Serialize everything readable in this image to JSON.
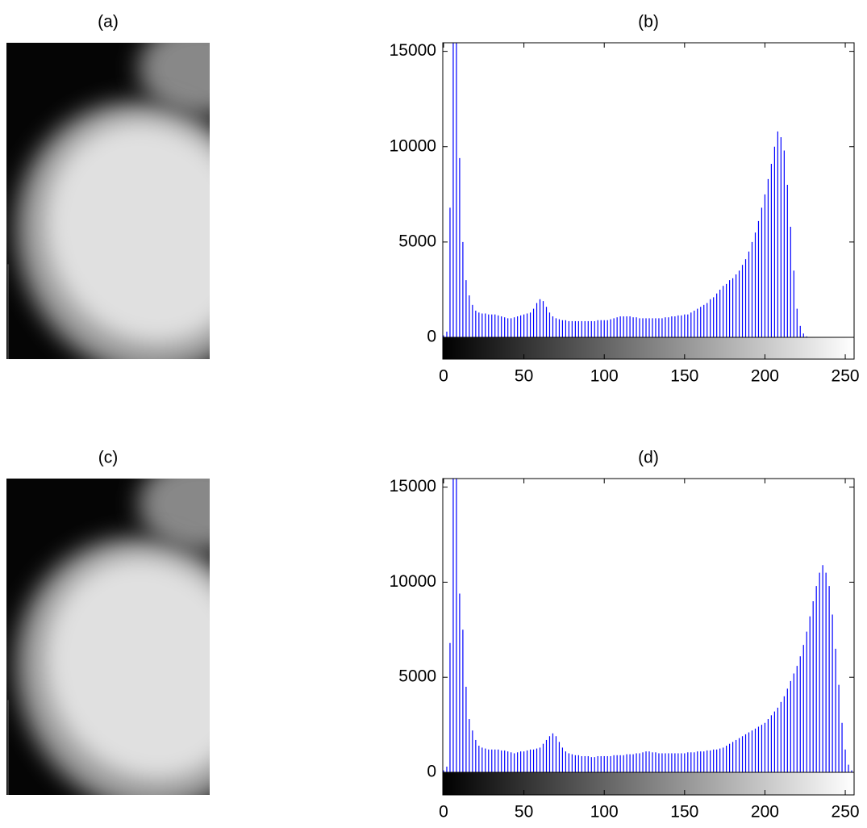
{
  "chart_data": [
    {
      "type": "image",
      "title": "(a)"
    },
    {
      "type": "stem",
      "title": "(b)",
      "color": "#0000ff",
      "colorbar": true,
      "xlim": [
        -0.5,
        255.5
      ],
      "ylim": [
        0,
        15450
      ],
      "xticks": [
        0,
        50,
        100,
        150,
        200,
        250
      ],
      "yticks": [
        0,
        5000,
        10000,
        15000
      ],
      "x": [
        0,
        2,
        4,
        6,
        8,
        10,
        12,
        14,
        16,
        18,
        20,
        22,
        24,
        26,
        28,
        30,
        32,
        34,
        36,
        38,
        40,
        42,
        44,
        46,
        48,
        50,
        52,
        54,
        56,
        58,
        60,
        62,
        64,
        66,
        68,
        70,
        72,
        74,
        76,
        78,
        80,
        82,
        84,
        86,
        88,
        90,
        92,
        94,
        96,
        98,
        100,
        102,
        104,
        106,
        108,
        110,
        112,
        114,
        116,
        118,
        120,
        122,
        124,
        126,
        128,
        130,
        132,
        134,
        136,
        138,
        140,
        142,
        144,
        146,
        148,
        150,
        152,
        154,
        156,
        158,
        160,
        162,
        164,
        166,
        168,
        170,
        172,
        174,
        176,
        178,
        180,
        182,
        184,
        186,
        188,
        190,
        192,
        194,
        196,
        198,
        200,
        202,
        204,
        206,
        208,
        210,
        212,
        214,
        216,
        218,
        220,
        222,
        224,
        226
      ],
      "values": [
        100,
        300,
        6800,
        15450,
        15450,
        9400,
        5000,
        3000,
        2200,
        1700,
        1400,
        1300,
        1250,
        1250,
        1200,
        1200,
        1200,
        1150,
        1100,
        1050,
        1000,
        1000,
        1050,
        1100,
        1150,
        1200,
        1250,
        1300,
        1500,
        1800,
        2000,
        1900,
        1600,
        1300,
        1100,
        1000,
        950,
        900,
        900,
        850,
        850,
        850,
        850,
        850,
        850,
        850,
        850,
        850,
        900,
        900,
        900,
        900,
        950,
        1000,
        1050,
        1100,
        1100,
        1100,
        1100,
        1050,
        1050,
        1000,
        1000,
        1000,
        1000,
        1000,
        1000,
        1000,
        1000,
        1050,
        1050,
        1100,
        1100,
        1150,
        1150,
        1200,
        1200,
        1300,
        1400,
        1500,
        1600,
        1700,
        1800,
        2000,
        2100,
        2300,
        2500,
        2700,
        2800,
        3000,
        3100,
        3300,
        3500,
        3800,
        4100,
        4500,
        5000,
        5500,
        6100,
        6800,
        7500,
        8300,
        9100,
        10000,
        10800,
        10500,
        9800,
        8000,
        5800,
        3500,
        1500,
        600,
        200,
        50
      ]
    },
    {
      "type": "image",
      "title": "(c)"
    },
    {
      "type": "stem",
      "title": "(d)",
      "color": "#0000ff",
      "colorbar": true,
      "xlim": [
        -0.5,
        255.5
      ],
      "ylim": [
        0,
        15450
      ],
      "xticks": [
        0,
        50,
        100,
        150,
        200,
        250
      ],
      "yticks": [
        0,
        5000,
        10000,
        15000
      ],
      "x": [
        0,
        2,
        4,
        6,
        8,
        10,
        12,
        14,
        16,
        18,
        20,
        22,
        24,
        26,
        28,
        30,
        32,
        34,
        36,
        38,
        40,
        42,
        44,
        46,
        48,
        50,
        52,
        54,
        56,
        58,
        60,
        62,
        64,
        66,
        68,
        70,
        72,
        74,
        76,
        78,
        80,
        82,
        84,
        86,
        88,
        90,
        92,
        94,
        96,
        98,
        100,
        102,
        104,
        106,
        108,
        110,
        112,
        114,
        116,
        118,
        120,
        122,
        124,
        126,
        128,
        130,
        132,
        134,
        136,
        138,
        140,
        142,
        144,
        146,
        148,
        150,
        152,
        154,
        156,
        158,
        160,
        162,
        164,
        166,
        168,
        170,
        172,
        174,
        176,
        178,
        180,
        182,
        184,
        186,
        188,
        190,
        192,
        194,
        196,
        198,
        200,
        202,
        204,
        206,
        208,
        210,
        212,
        214,
        216,
        218,
        220,
        222,
        224,
        226,
        228,
        230,
        232,
        234,
        236,
        238,
        240,
        242,
        244,
        246,
        248,
        250,
        252,
        254
      ],
      "values": [
        100,
        300,
        6800,
        15450,
        15450,
        9400,
        7500,
        4500,
        2800,
        2200,
        1700,
        1400,
        1300,
        1250,
        1200,
        1200,
        1200,
        1200,
        1150,
        1150,
        1100,
        1050,
        1000,
        1050,
        1100,
        1100,
        1150,
        1200,
        1200,
        1250,
        1300,
        1500,
        1700,
        1900,
        2050,
        1900,
        1600,
        1300,
        1100,
        1000,
        950,
        900,
        900,
        850,
        850,
        850,
        800,
        800,
        850,
        850,
        850,
        850,
        850,
        900,
        900,
        900,
        900,
        950,
        950,
        950,
        1000,
        1000,
        1050,
        1100,
        1100,
        1050,
        1050,
        1000,
        1000,
        1000,
        1000,
        1000,
        1000,
        1000,
        1000,
        1000,
        1050,
        1050,
        1050,
        1100,
        1100,
        1100,
        1150,
        1150,
        1200,
        1200,
        1250,
        1300,
        1400,
        1500,
        1600,
        1700,
        1800,
        1900,
        2000,
        2100,
        2200,
        2300,
        2400,
        2500,
        2600,
        2800,
        3000,
        3200,
        3400,
        3700,
        4000,
        4400,
        4800,
        5200,
        5600,
        6100,
        6700,
        7400,
        8200,
        9000,
        9800,
        10500,
        10900,
        10500,
        9800,
        8300,
        6500,
        4600,
        2600,
        1200,
        400,
        100
      ]
    }
  ]
}
